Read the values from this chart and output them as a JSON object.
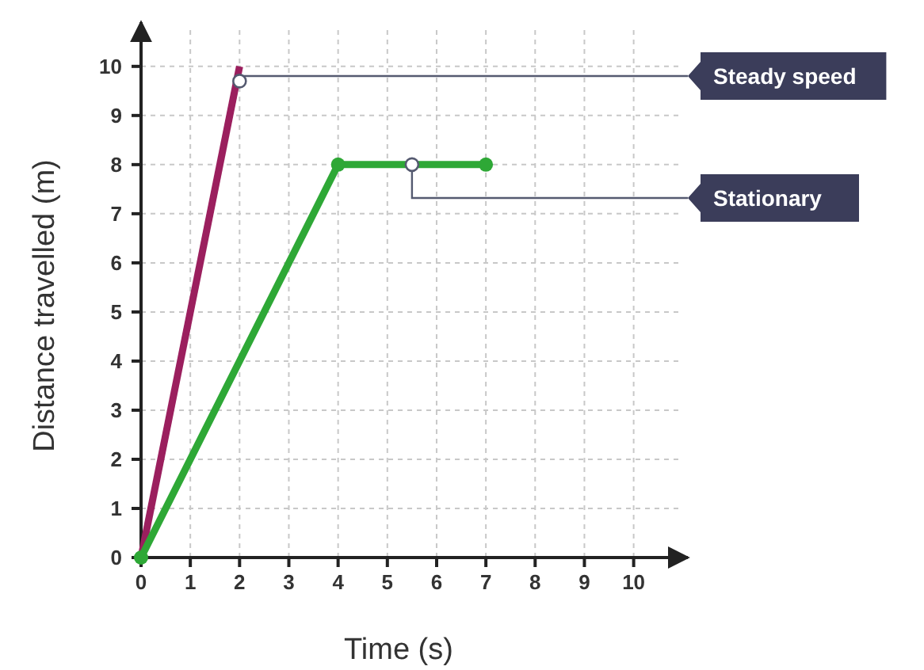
{
  "chart_data": {
    "type": "line",
    "xlabel": "Time (s)",
    "ylabel": "Distance travelled (m)",
    "xlim": [
      0,
      11.1
    ],
    "ylim": [
      0,
      10.9
    ],
    "xticks": [
      0,
      1,
      2,
      3,
      4,
      5,
      6,
      7,
      8,
      9,
      10
    ],
    "yticks": [
      0,
      1,
      2,
      3,
      4,
      5,
      6,
      7,
      8,
      9,
      10
    ],
    "grid": true,
    "line_style": "solid",
    "series": [
      {
        "color": "#9b1f5e",
        "x": [
          0,
          2
        ],
        "values": [
          0,
          10
        ],
        "marker": "none"
      },
      {
        "color": "#2ea836",
        "x": [
          0,
          4,
          7
        ],
        "values": [
          0,
          8,
          8
        ],
        "marker": "circle"
      }
    ],
    "annotations": [
      {
        "text": "Steady speed",
        "x": 2,
        "y": 9.7
      },
      {
        "text": "Stationary",
        "x": 5.5,
        "y": 8
      }
    ]
  }
}
